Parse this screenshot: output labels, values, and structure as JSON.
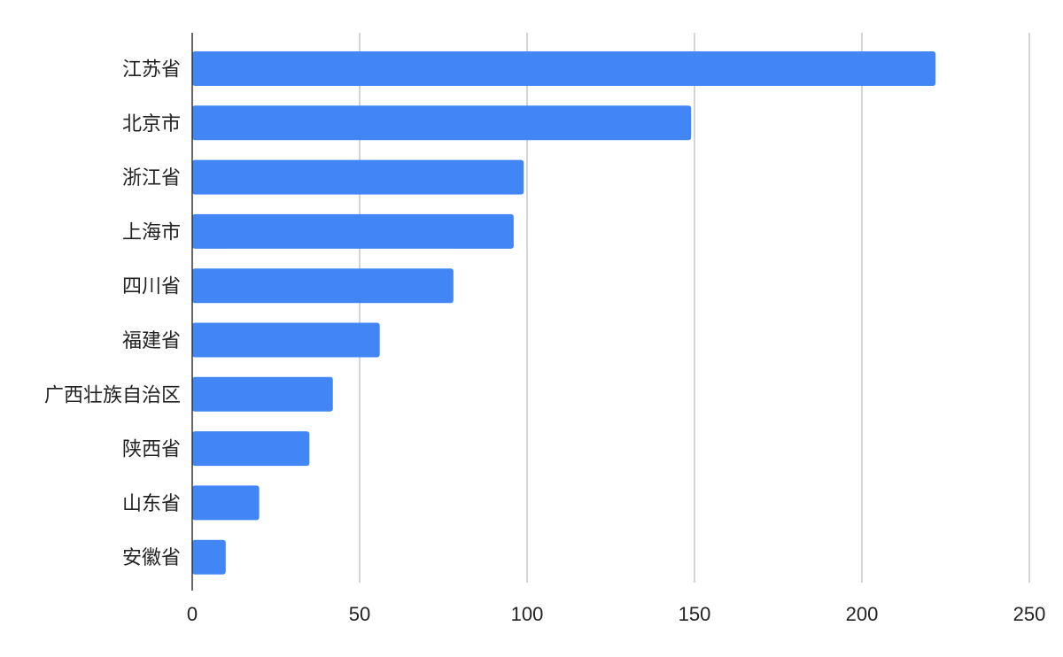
{
  "chart_data": {
    "type": "bar",
    "orientation": "horizontal",
    "categories": [
      "江苏省",
      "北京市",
      "浙江省",
      "上海市",
      "四川省",
      "福建省",
      "广西壮族自治区",
      "陕西省",
      "山东省",
      "安徽省"
    ],
    "values": [
      222,
      149,
      99,
      96,
      78,
      56,
      42,
      35,
      20,
      10
    ],
    "xlim": [
      0,
      250
    ],
    "x_ticks": [
      0,
      50,
      100,
      150,
      200,
      250
    ],
    "grid": true,
    "legend": "none",
    "bar_color": "#4285F4",
    "title": "",
    "xlabel": "",
    "ylabel": ""
  }
}
